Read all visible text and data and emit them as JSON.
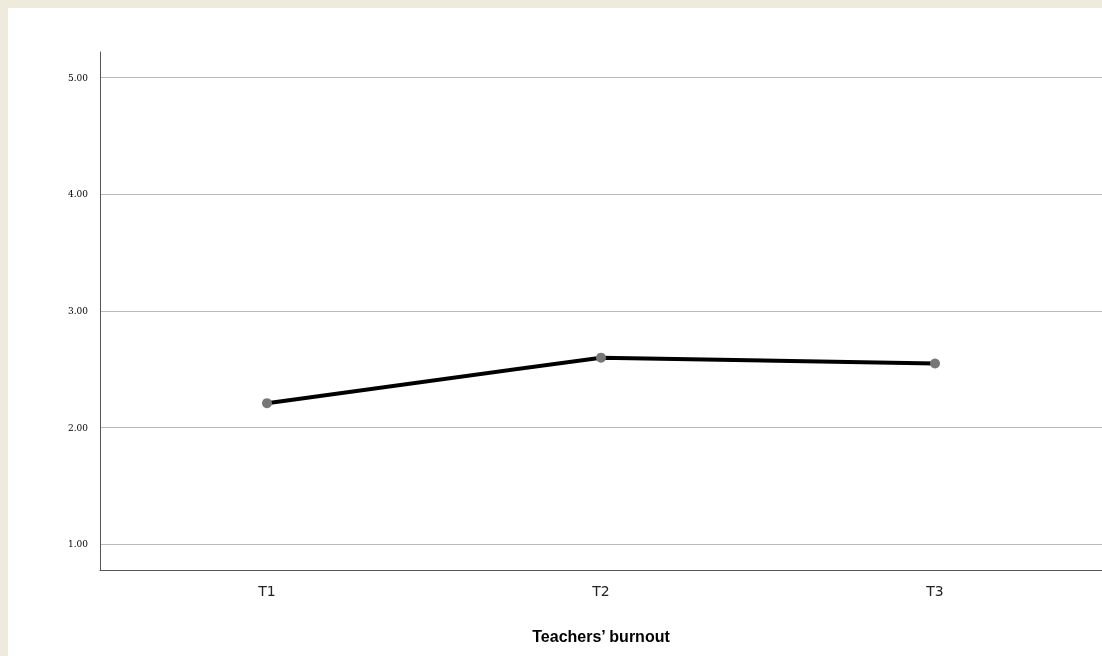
{
  "chart_data": {
    "type": "line",
    "xlabel": "Teachers’ burnout",
    "categories": [
      "T1",
      "T2",
      "T3"
    ],
    "series": [
      {
        "color": "#000000",
        "values": [
          2.21,
          2.6,
          2.55
        ]
      }
    ],
    "ylim": [
      0.78,
      5.22
    ],
    "yticks": [
      {
        "value": 1,
        "label": "1.00"
      },
      {
        "value": 2,
        "label": "2.00"
      },
      {
        "value": 3,
        "label": "3.00"
      },
      {
        "value": 4,
        "label": "4.00"
      },
      {
        "value": 5,
        "label": "5.00"
      }
    ],
    "grid": "y",
    "marker": "circle",
    "line_style": "solid"
  }
}
